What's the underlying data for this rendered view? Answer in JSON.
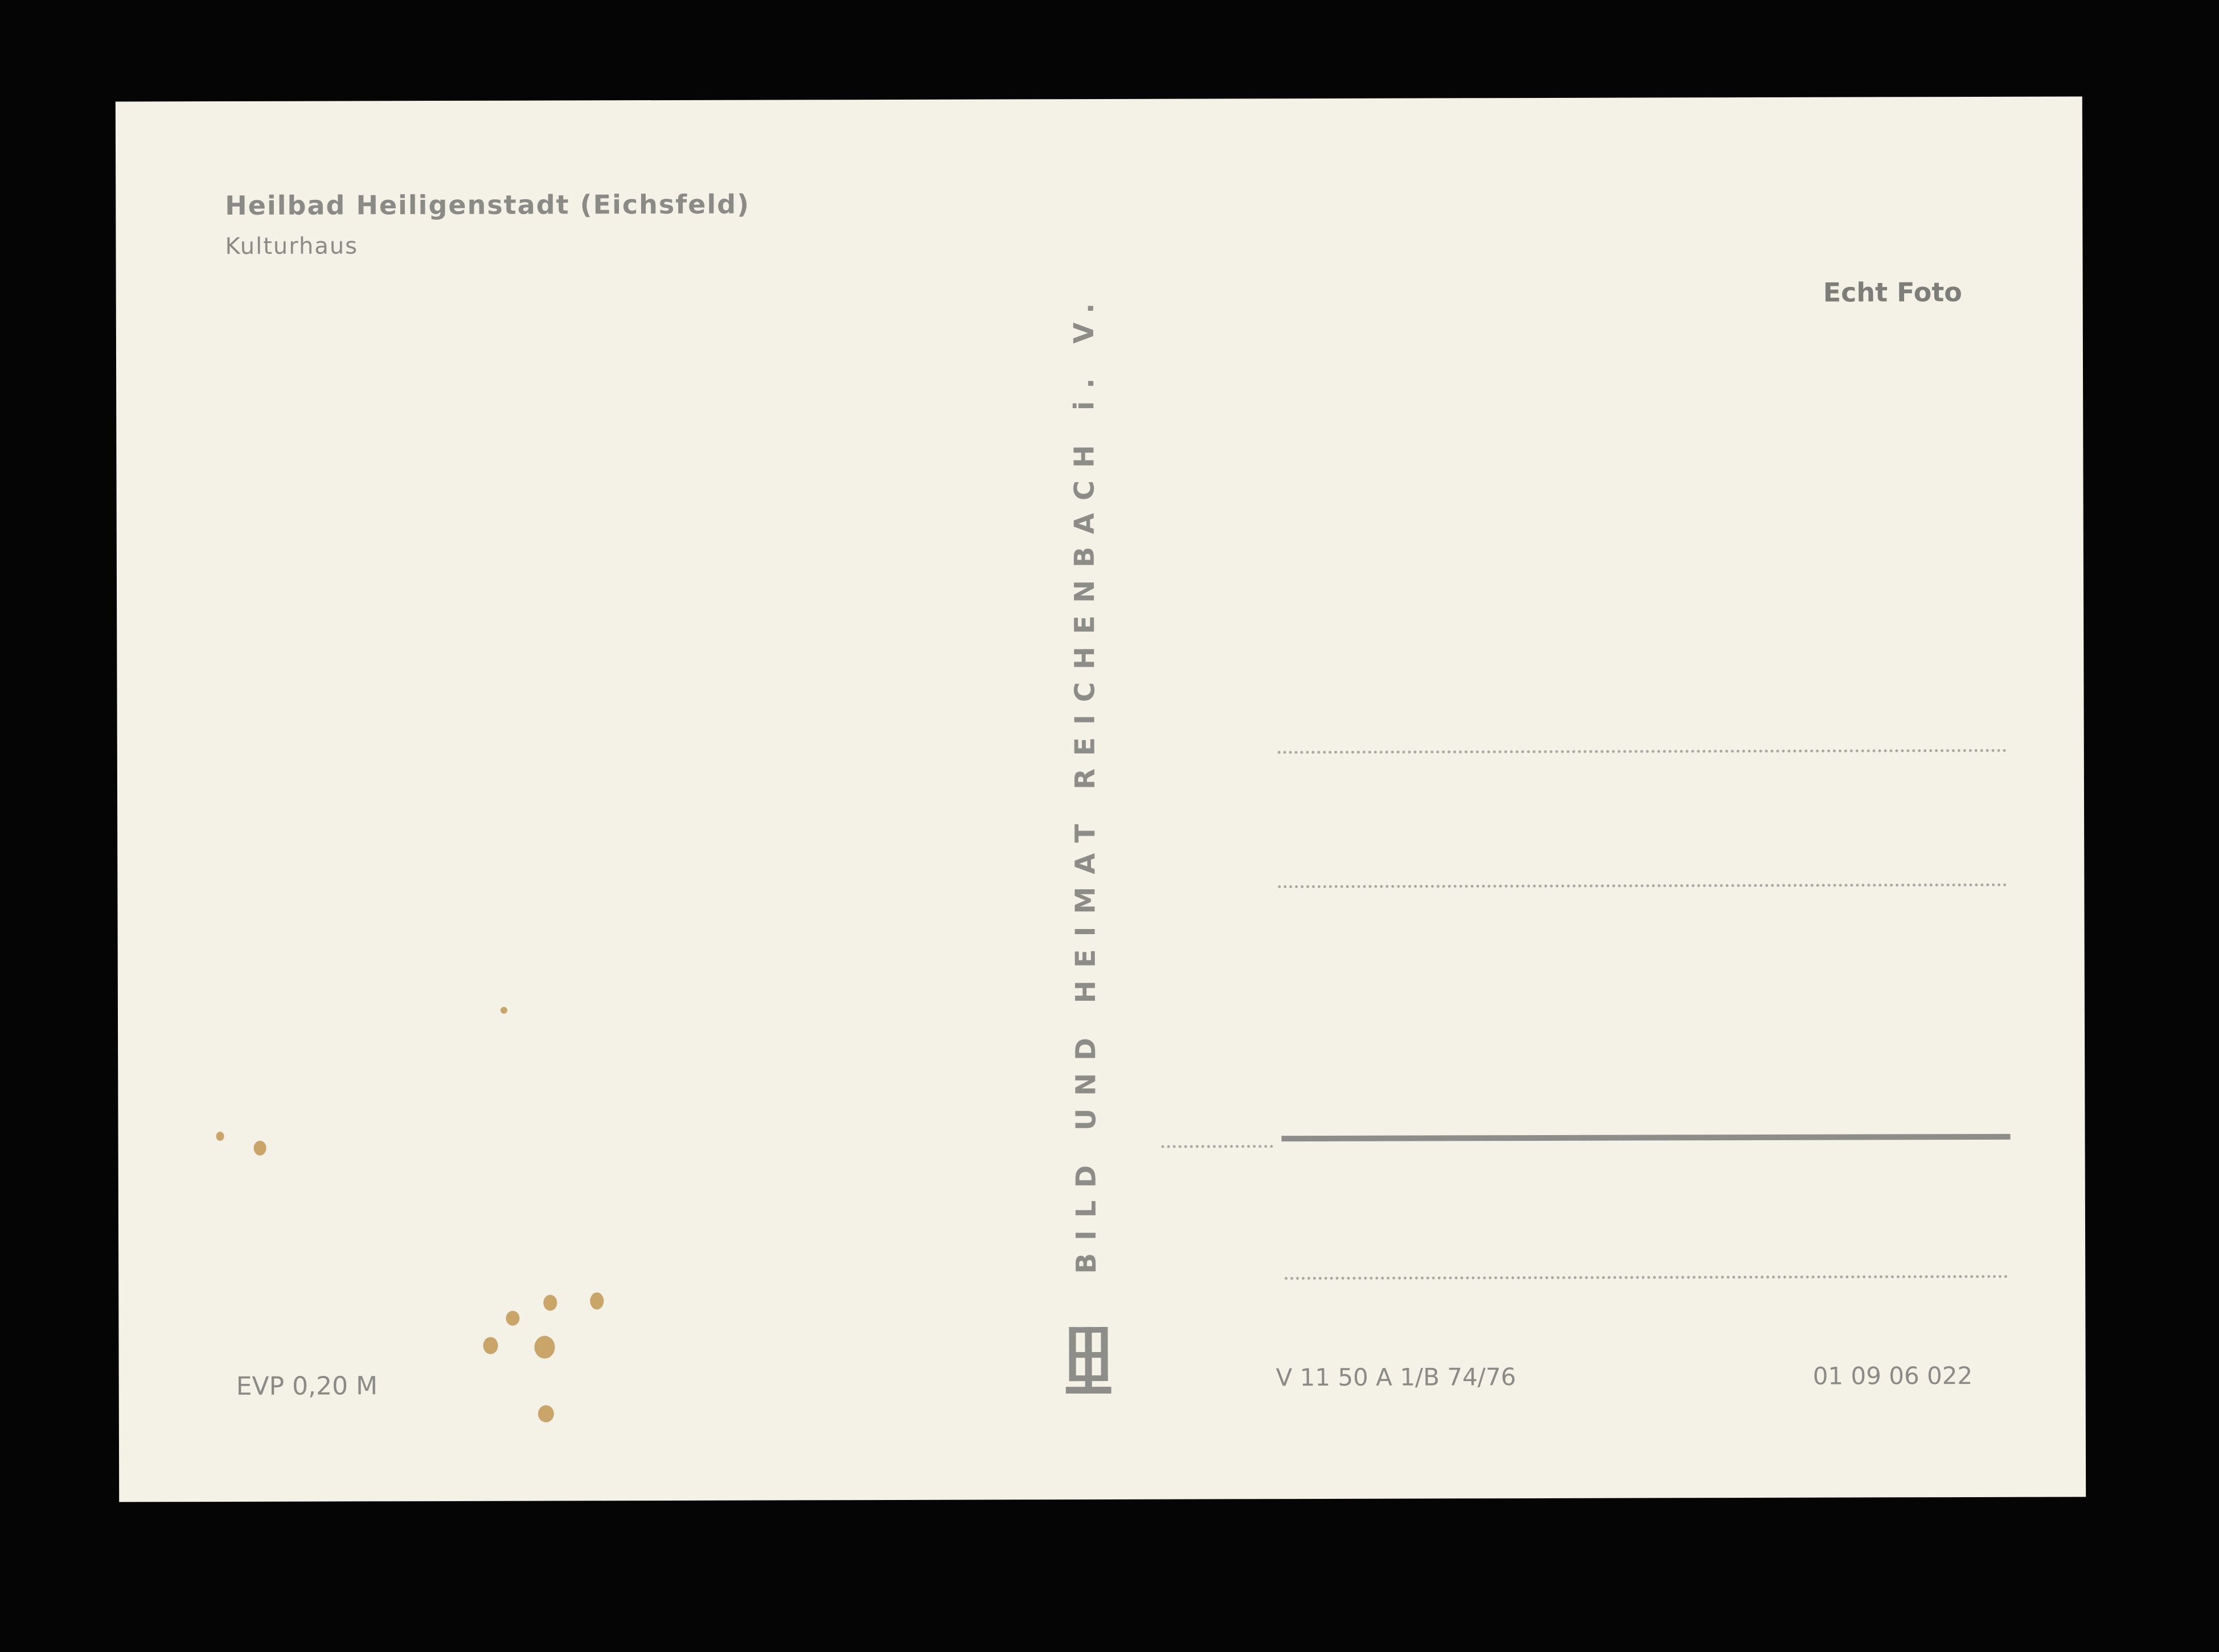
{
  "postcard": {
    "title": "Heilbad Heiligenstadt (Eichsfeld)",
    "subtitle": "Kulturhaus",
    "photo_note": "Echt Foto",
    "publisher_vertical": "BILD UND HEIMAT REICHENBACH i. V.",
    "price": "EVP 0,20 M",
    "print_code": "V 11 50 A 1/B 74/76",
    "catalog_number": "01 09 06 022",
    "colors": {
      "paper": "#f4f1e6",
      "ink": "#8a8a86",
      "background": "#050505"
    }
  }
}
